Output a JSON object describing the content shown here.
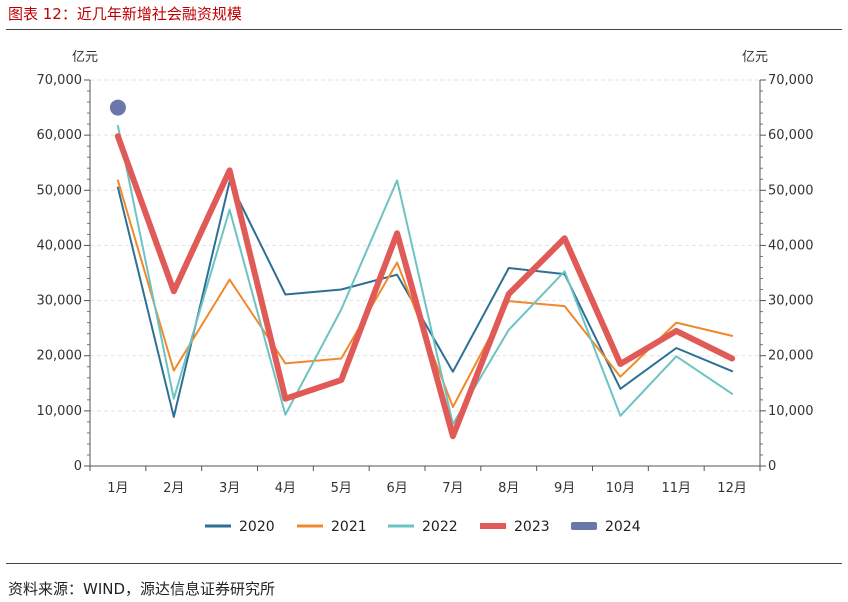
{
  "figure": {
    "title": "图表 12：近几年新增社会融资规模",
    "source": "资料来源：WIND，源达信息证券研究所"
  },
  "chart_data": {
    "type": "line",
    "categories": [
      "1月",
      "2月",
      "3月",
      "4月",
      "5月",
      "6月",
      "7月",
      "8月",
      "9月",
      "10月",
      "11月",
      "12月"
    ],
    "y_unit_left": "亿元",
    "y_unit_right": "亿元",
    "ylim": [
      0,
      70000
    ],
    "yticks": [
      0,
      10000,
      20000,
      30000,
      40000,
      50000,
      60000,
      70000
    ],
    "ytick_labels": [
      "0",
      "10,000",
      "20,000",
      "30,000",
      "40,000",
      "50,000",
      "60,000",
      "70,000"
    ],
    "grid": true,
    "legend_position": "bottom",
    "series": [
      {
        "name": "2020",
        "color": "#2e6f96",
        "width": 2,
        "values": [
          50500,
          8900,
          51600,
          31100,
          32000,
          34700,
          17100,
          35900,
          34800,
          14000,
          21400,
          17200
        ]
      },
      {
        "name": "2021",
        "color": "#f0892b",
        "width": 2,
        "values": [
          51800,
          17300,
          33800,
          18600,
          19500,
          36900,
          10700,
          29900,
          29000,
          16200,
          26000,
          23600
        ]
      },
      {
        "name": "2022",
        "color": "#6dc3c2",
        "width": 2,
        "values": [
          61700,
          12200,
          46500,
          9300,
          28400,
          51800,
          7600,
          24700,
          35300,
          9100,
          19900,
          13100
        ]
      },
      {
        "name": "2023",
        "color": "#e05a57",
        "width": 6,
        "values": [
          59800,
          31700,
          53600,
          12200,
          15600,
          42200,
          5400,
          31200,
          41300,
          18500,
          24500,
          19500
        ]
      },
      {
        "name": "2024",
        "color": "#6a78a9",
        "width": 0,
        "marker": true,
        "values": [
          65000,
          null,
          null,
          null,
          null,
          null,
          null,
          null,
          null,
          null,
          null,
          null
        ]
      }
    ]
  }
}
